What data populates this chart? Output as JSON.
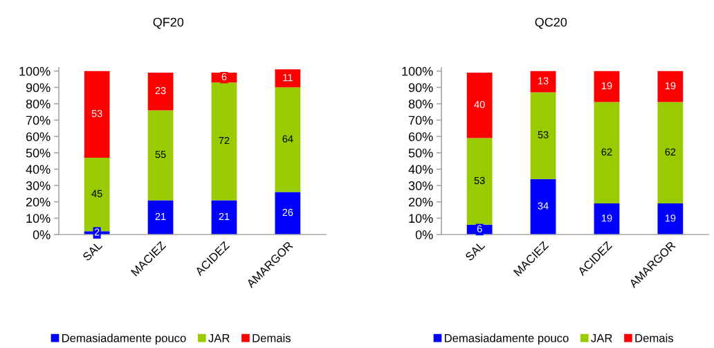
{
  "chart_data": [
    {
      "type": "bar",
      "title": "QF20",
      "stacked": true,
      "categories": [
        "SAL",
        "MACIEZ",
        "ACIDEZ",
        "AMARGOR"
      ],
      "series": [
        {
          "name": "Demasiadamente pouco",
          "color": "#0000ff",
          "values": [
            2,
            21,
            21,
            26
          ]
        },
        {
          "name": "JAR",
          "color": "#99cc00",
          "values": [
            45,
            55,
            72,
            64
          ]
        },
        {
          "name": "Demais",
          "color": "#ff0000",
          "values": [
            53,
            23,
            6,
            11
          ]
        }
      ],
      "ylim": [
        0,
        102
      ],
      "yticks": [
        {
          "value": 0,
          "label": "0%"
        },
        {
          "value": 10,
          "label": "10%"
        },
        {
          "value": 20,
          "label": "20%"
        },
        {
          "value": 30,
          "label": "30%"
        },
        {
          "value": 40,
          "label": "40%"
        },
        {
          "value": 50,
          "label": "50%"
        },
        {
          "value": 60,
          "label": "60%"
        },
        {
          "value": 70,
          "label": "70%"
        },
        {
          "value": 80,
          "label": "80%"
        },
        {
          "value": 90,
          "label": "90%"
        },
        {
          "value": 100,
          "label": "100%"
        }
      ],
      "data_labels": true,
      "legend": "bottom"
    },
    {
      "type": "bar",
      "title": "QC20",
      "stacked": true,
      "categories": [
        "SAL",
        "MACIEZ",
        "ACIDEZ",
        "AMARGOR"
      ],
      "series": [
        {
          "name": "Demasiadamente pouco",
          "color": "#0000ff",
          "values": [
            6,
            34,
            19,
            19
          ]
        },
        {
          "name": "JAR",
          "color": "#99cc00",
          "values": [
            53,
            53,
            62,
            62
          ]
        },
        {
          "name": "Demais",
          "color": "#ff0000",
          "values": [
            40,
            13,
            19,
            19
          ]
        }
      ],
      "ylim": [
        0,
        102
      ],
      "yticks": [
        {
          "value": 0,
          "label": "0%"
        },
        {
          "value": 10,
          "label": "10%"
        },
        {
          "value": 20,
          "label": "20%"
        },
        {
          "value": 30,
          "label": "30%"
        },
        {
          "value": 40,
          "label": "40%"
        },
        {
          "value": 50,
          "label": "50%"
        },
        {
          "value": 60,
          "label": "60%"
        },
        {
          "value": 70,
          "label": "70%"
        },
        {
          "value": 80,
          "label": "80%"
        },
        {
          "value": 90,
          "label": "90%"
        },
        {
          "value": 100,
          "label": "100%"
        }
      ],
      "data_labels": true,
      "legend": "bottom"
    }
  ]
}
